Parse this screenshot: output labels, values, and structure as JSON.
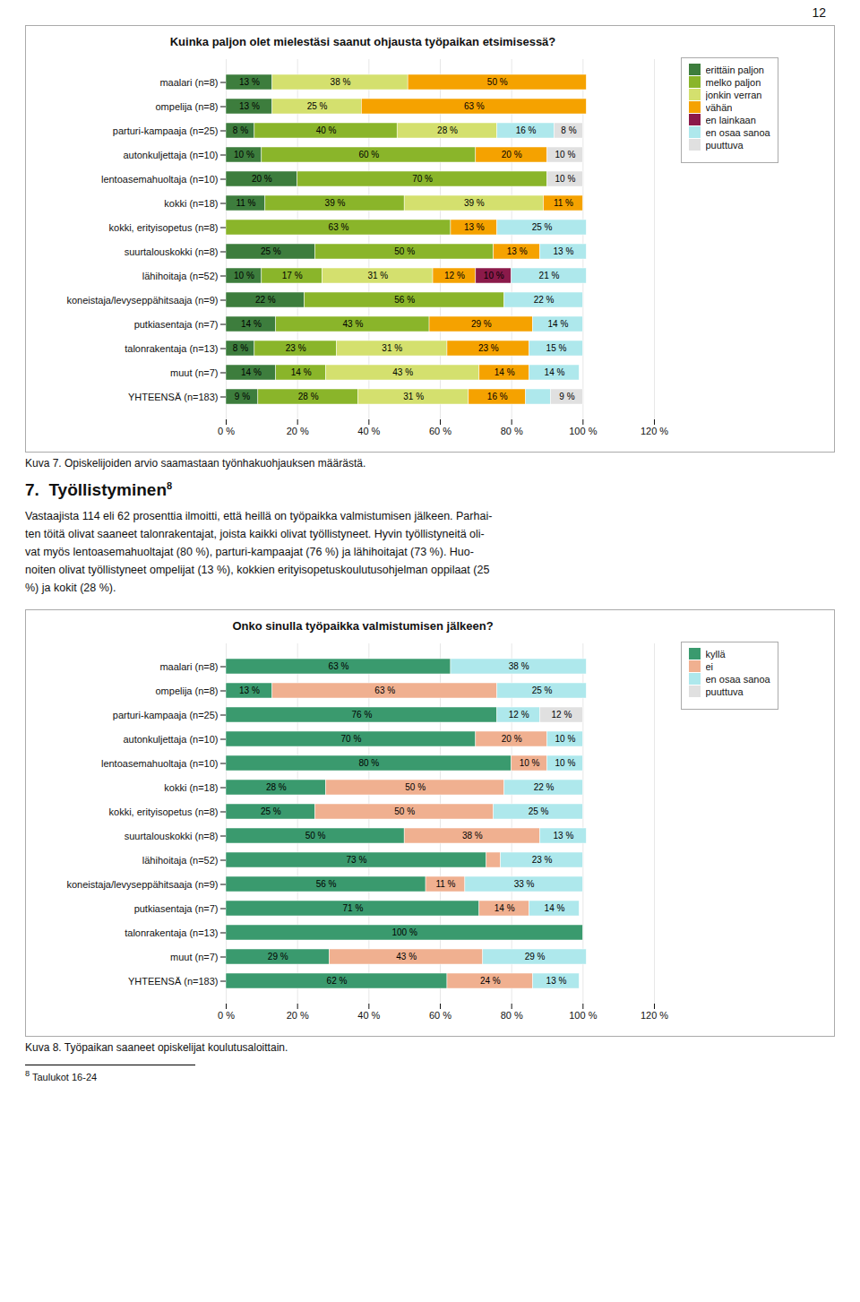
{
  "page_number": "12",
  "section_title": "7.  Työllistyminen",
  "section_superscript": "8",
  "text": [
    "Vastaajista 114 eli 62 prosenttia ilmoitti, että heillä on työpaikka valmistumisen jälkeen. Parhai-",
    "ten töitä olivat saaneet talonrakentajat, joista kaikki olivat työllistyneet. Hyvin työllistyneitä oli-",
    "vat myös lentoasemahuoltajat (80 %), parturi-kampaajat (76 %) ja lähihoitajat (73 %). Huo-",
    "noiten olivat työllistyneet ompelijat (13 %), kokkien erityisopetuskoulutusohjelman oppilaat (25",
    "%) ja kokit (28 %)."
  ],
  "footnote": {
    "number": "8",
    "text": "Taulukot 16-24"
  },
  "chart_data": [
    {
      "type": "bar",
      "orientation": "horizontal",
      "stacked": true,
      "data_labels": true,
      "grid": true,
      "legend": "right",
      "title": "Kuinka paljon olet mielestäsi saanut ohjausta työpaikan etsimisessä?",
      "caption": "Kuva 7. Opiskelijoiden arvio saamastaan työnhakuohjauksen määrästä.",
      "categories": [
        "maalari (n=8)",
        "ompelija (n=8)",
        "parturi-kampaaja (n=25)",
        "autonkuljettaja (n=10)",
        "lentoasemahuoltaja (n=10)",
        "kokki (n=18)",
        "kokki, erityisopetus (n=8)",
        "suurtalouskokki (n=8)",
        "lähihoitaja (n=52)",
        "koneistaja/levyseppähitsaaja (n=9)",
        "putkiasentaja (n=7)",
        "talonrakentaja (n=13)",
        "muut (n=7)",
        "YHTEENSÄ (n=183)"
      ],
      "xlim": [
        0,
        120
      ],
      "xticks": [
        {
          "value": 0,
          "label": "0 %"
        },
        {
          "value": 20,
          "label": "20 %"
        },
        {
          "value": 40,
          "label": "40 %"
        },
        {
          "value": 60,
          "label": "60 %"
        },
        {
          "value": 80,
          "label": "80 %"
        },
        {
          "value": 100,
          "label": "100 %"
        },
        {
          "value": 120,
          "label": "120 %"
        }
      ],
      "series": [
        {
          "name": "erittäin paljon",
          "color": "#3d7d3d",
          "values": [
            13,
            13,
            8,
            10,
            20,
            11,
            0,
            25,
            10,
            22,
            14,
            8,
            14,
            9
          ],
          "value_labels": [
            "13 %",
            "13 %",
            "8 %",
            "10 %",
            "20 %",
            "11 %",
            null,
            "25 %",
            "10 %",
            "22 %",
            "14 %",
            "8 %",
            "14 %",
            "9 %"
          ]
        },
        {
          "name": "melko paljon",
          "color": "#8ab52a",
          "values": [
            0,
            0,
            40,
            60,
            70,
            39,
            63,
            50,
            17,
            56,
            43,
            23,
            14,
            28
          ],
          "value_labels": [
            null,
            null,
            "40 %",
            "60 %",
            "70 %",
            "39 %",
            "63 %",
            "50 %",
            "17 %",
            "56 %",
            "43 %",
            "23 %",
            "14 %",
            "28 %"
          ]
        },
        {
          "name": "jonkin verran",
          "color": "#d4e06e",
          "values": [
            38,
            25,
            28,
            0,
            0,
            39,
            0,
            0,
            31,
            0,
            0,
            31,
            43,
            31
          ],
          "value_labels": [
            "38 %",
            "25 %",
            "28 %",
            null,
            null,
            "39 %",
            null,
            null,
            "31 %",
            null,
            null,
            "31 %",
            "43 %",
            "31 %"
          ]
        },
        {
          "name": "vähän",
          "color": "#f5a200",
          "values": [
            50,
            63,
            0,
            20,
            0,
            11,
            13,
            13,
            12,
            0,
            29,
            23,
            14,
            16
          ],
          "value_labels": [
            "50 %",
            "63 %",
            null,
            "20 %",
            null,
            "11 %",
            "13 %",
            "13 %",
            "12 %",
            null,
            "29 %",
            "23 %",
            "14 %",
            "16 %"
          ]
        },
        {
          "name": "en lainkaan",
          "color": "#8b1a4a",
          "values": [
            0,
            0,
            0,
            0,
            0,
            0,
            0,
            0,
            10,
            0,
            0,
            0,
            0,
            0
          ],
          "value_labels": [
            null,
            null,
            null,
            null,
            null,
            null,
            null,
            null,
            "10 %",
            null,
            null,
            null,
            null,
            null
          ]
        },
        {
          "name": "en osaa sanoa",
          "color": "#aee8ec",
          "values": [
            0,
            0,
            16,
            0,
            0,
            0,
            25,
            13,
            21,
            22,
            14,
            15,
            14,
            7
          ],
          "value_labels": [
            null,
            null,
            "16 %",
            null,
            null,
            null,
            "25 %",
            "13 %",
            "21 %",
            "22 %",
            "14 %",
            "15 %",
            "14 %",
            null
          ]
        },
        {
          "name": "puuttuva",
          "color": "#e0e0e0",
          "values": [
            0,
            0,
            8,
            10,
            10,
            0,
            0,
            0,
            0,
            0,
            0,
            0,
            0,
            9
          ],
          "value_labels": [
            null,
            null,
            "8 %",
            "10 %",
            "10 %",
            null,
            null,
            null,
            null,
            null,
            null,
            null,
            null,
            "9 %"
          ]
        }
      ]
    },
    {
      "type": "bar",
      "orientation": "horizontal",
      "stacked": true,
      "data_labels": true,
      "grid": true,
      "legend": "right",
      "title": "Onko sinulla työpaikka valmistumisen jälkeen?",
      "caption": "Kuva 8. Työpaikan saaneet opiskelijat koulutusaloittain.",
      "categories": [
        "maalari (n=8)",
        "ompelija (n=8)",
        "parturi-kampaaja (n=25)",
        "autonkuljettaja (n=10)",
        "lentoasemahuoltaja (n=10)",
        "kokki (n=18)",
        "kokki, erityisopetus (n=8)",
        "suurtalouskokki (n=8)",
        "lähihoitaja (n=52)",
        "koneistaja/levyseppähitsaaja (n=9)",
        "putkiasentaja (n=7)",
        "talonrakentaja (n=13)",
        "muut (n=7)",
        "YHTEENSÄ (n=183)"
      ],
      "xlim": [
        0,
        120
      ],
      "xticks": [
        {
          "value": 0,
          "label": "0 %"
        },
        {
          "value": 20,
          "label": "20 %"
        },
        {
          "value": 40,
          "label": "40 %"
        },
        {
          "value": 60,
          "label": "60 %"
        },
        {
          "value": 80,
          "label": "80 %"
        },
        {
          "value": 100,
          "label": "100 %"
        },
        {
          "value": 120,
          "label": "120 %"
        }
      ],
      "series": [
        {
          "name": "kyllä",
          "color": "#3a9a6e",
          "values": [
            63,
            13,
            76,
            70,
            80,
            28,
            25,
            50,
            73,
            56,
            71,
            100,
            29,
            62
          ],
          "value_labels": [
            "63 %",
            "13 %",
            "76 %",
            "70 %",
            "80 %",
            "28 %",
            "25 %",
            "50 %",
            "73 %",
            "56 %",
            "71 %",
            "100 %",
            "29 %",
            "62 %"
          ]
        },
        {
          "name": "ei",
          "color": "#f0b090",
          "values": [
            0,
            63,
            0,
            20,
            10,
            50,
            50,
            38,
            4,
            11,
            14,
            0,
            43,
            24
          ],
          "value_labels": [
            null,
            "63 %",
            null,
            "20 %",
            "10 %",
            "50 %",
            "50 %",
            "38 %",
            null,
            "11 %",
            "14 %",
            null,
            "43 %",
            "24 %"
          ]
        },
        {
          "name": "en osaa sanoa",
          "color": "#aee8ec",
          "values": [
            38,
            25,
            12,
            10,
            10,
            22,
            25,
            13,
            23,
            33,
            14,
            0,
            29,
            13
          ],
          "value_labels": [
            "38 %",
            "25 %",
            "12 %",
            "10 %",
            "10 %",
            "22 %",
            "25 %",
            "13 %",
            "23 %",
            "33 %",
            "14 %",
            null,
            "29 %",
            "13 %"
          ]
        },
        {
          "name": "puuttuva",
          "color": "#e0e0e0",
          "values": [
            0,
            0,
            12,
            0,
            0,
            0,
            0,
            0,
            0,
            0,
            0,
            0,
            0,
            0
          ],
          "value_labels": [
            null,
            null,
            "12 %",
            null,
            null,
            null,
            null,
            null,
            null,
            null,
            null,
            null,
            null,
            null
          ]
        }
      ]
    }
  ]
}
